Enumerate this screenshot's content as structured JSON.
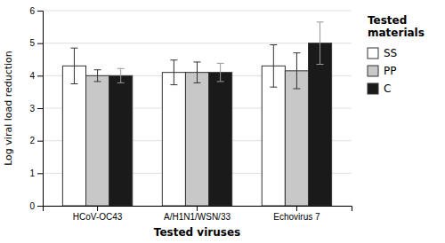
{
  "chart_data": {
    "type": "bar",
    "categories": [
      "HCoV-OC43",
      "A/H1N1/WSN/33",
      "Echovirus 7"
    ],
    "series": [
      {
        "name": "SS",
        "color": "#ffffff",
        "values": [
          4.3,
          4.1,
          4.3
        ],
        "errors": [
          0.55,
          0.38,
          0.65
        ]
      },
      {
        "name": "PP",
        "color": "#c8c8c8",
        "values": [
          4.0,
          4.1,
          4.15
        ],
        "errors": [
          0.18,
          0.32,
          0.55
        ]
      },
      {
        "name": "C",
        "color": "#1a1a1a",
        "values": [
          4.0,
          4.1,
          5.0
        ],
        "errors": [
          0.22,
          0.28,
          0.65
        ]
      }
    ],
    "xlabel": "Tested viruses",
    "ylabel": "Log viral load reduction",
    "legend_title": "Tested\nmaterials",
    "legend": "right",
    "ylim": [
      0,
      6
    ],
    "yticks": [
      0,
      1,
      2,
      3,
      4,
      5,
      6
    ],
    "grid": true
  }
}
